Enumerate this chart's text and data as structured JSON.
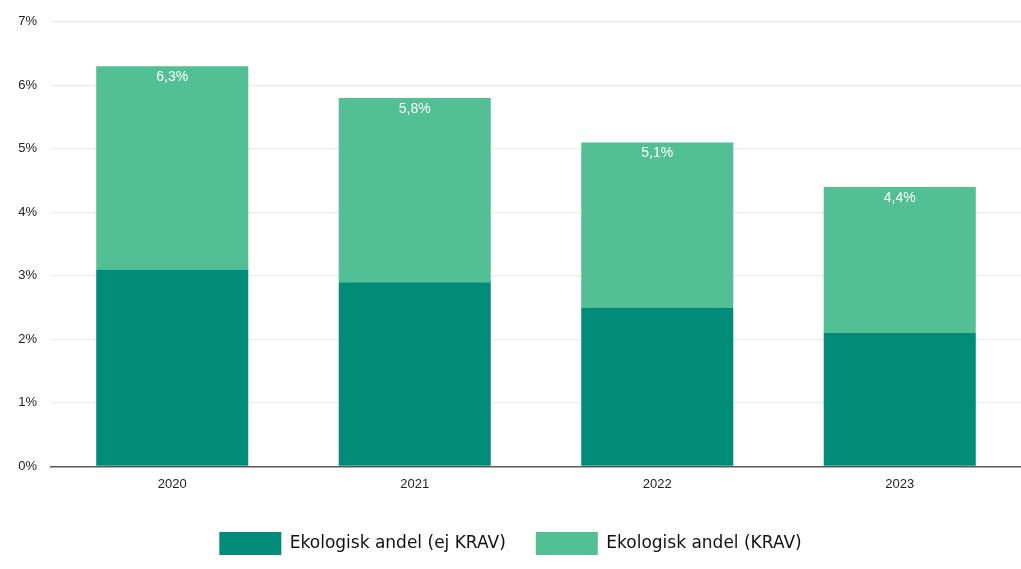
{
  "chart_data": {
    "type": "bar",
    "stacked": true,
    "categories": [
      "2020",
      "2021",
      "2022",
      "2023"
    ],
    "series": [
      {
        "name": "Ekologisk andel (ej KRAV)",
        "color": "#008c78",
        "values": [
          3.1,
          2.9,
          2.5,
          2.1
        ]
      },
      {
        "name": "Ekologisk andel (KRAV)",
        "color": "#52bf94",
        "values": [
          3.2,
          2.9,
          2.6,
          2.3
        ]
      }
    ],
    "totals": [
      "6,3%",
      "5,8%",
      "5,1%",
      "4,4%"
    ],
    "ylim": [
      0,
      7
    ],
    "yticks": [
      {
        "value": 0,
        "label": "0%"
      },
      {
        "value": 1,
        "label": "1%"
      },
      {
        "value": 2,
        "label": "2%"
      },
      {
        "value": 3,
        "label": "3%"
      },
      {
        "value": 4,
        "label": "4%"
      },
      {
        "value": 5,
        "label": "5%"
      },
      {
        "value": 6,
        "label": "6%"
      },
      {
        "value": 7,
        "label": "7%"
      }
    ],
    "grid": "y",
    "legend": "bottom"
  }
}
